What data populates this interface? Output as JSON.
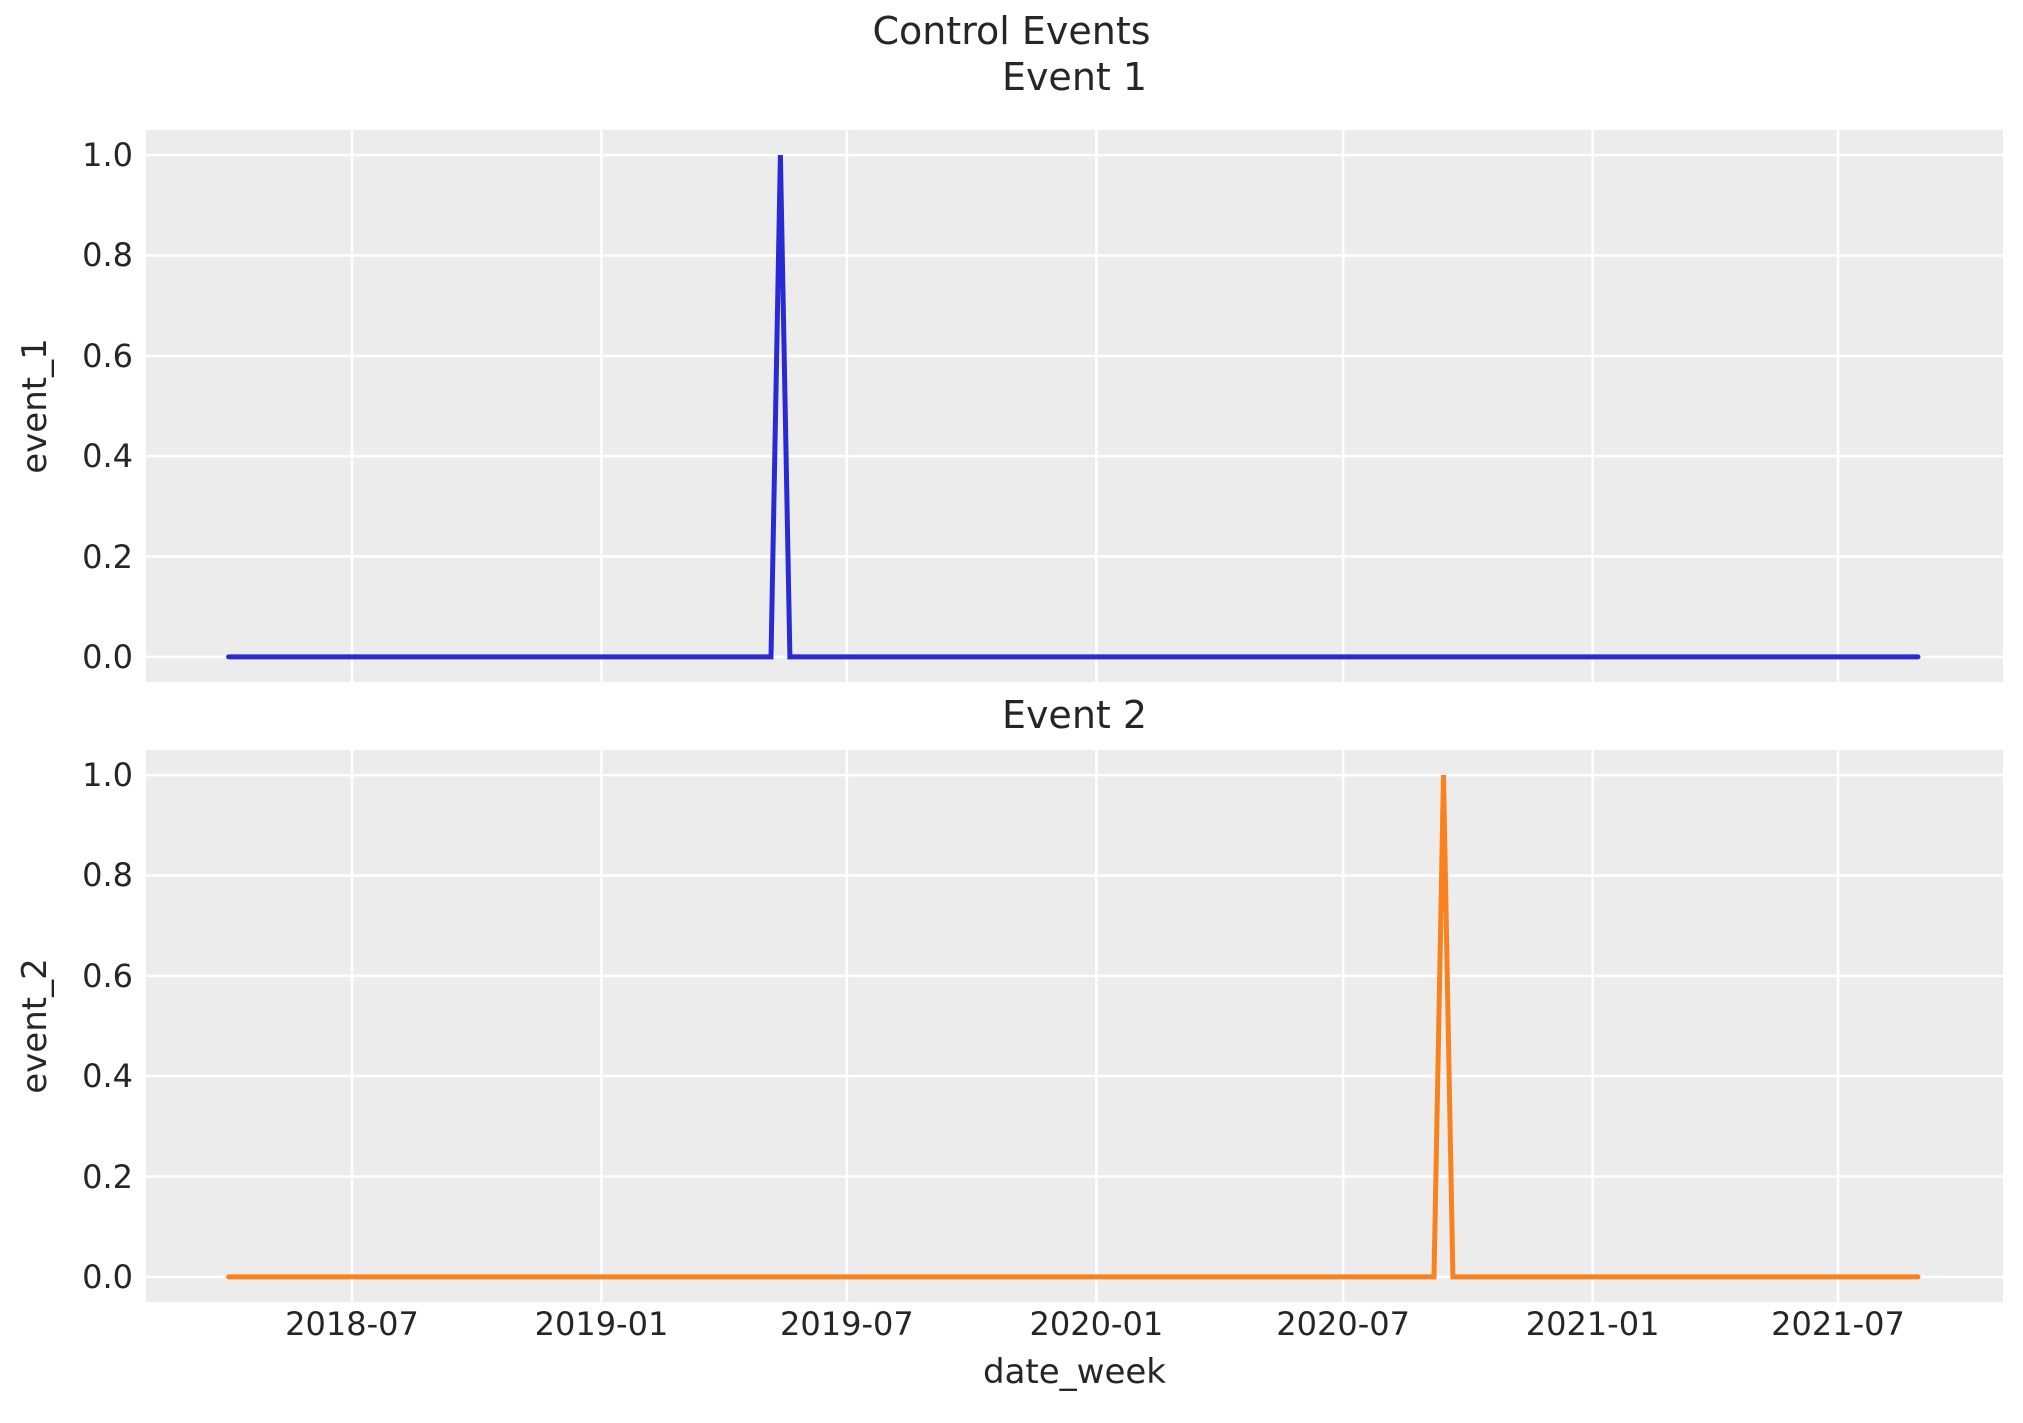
{
  "figure": {
    "title": "Control Events"
  },
  "colors": {
    "figure_background": "#ffffff",
    "plot_background": "#ececec",
    "gridline": "#ffffff",
    "text": "#262626",
    "event_1_line": "#2a2ad4",
    "event_2_line": "#f9821e"
  },
  "chart_data": [
    {
      "type": "line",
      "title": "Event 1",
      "ylabel": "event_1",
      "xlabel": "",
      "grid": true,
      "legend": "none",
      "show_xtick_labels": false,
      "ylim": [
        -0.05,
        1.05
      ],
      "x_range": [
        "2018-04-01",
        "2021-08-29"
      ],
      "xticks": [
        "2018-07",
        "2019-01",
        "2019-07",
        "2020-01",
        "2020-07",
        "2021-01",
        "2021-07"
      ],
      "ytick_labels": [
        "0.0",
        "0.2",
        "0.4",
        "0.6",
        "0.8",
        "1.0"
      ],
      "series": [
        {
          "name": "event_1",
          "color": "#2a2ad4",
          "baseline_value": 0.0,
          "spike": {
            "date": "2019-05-13",
            "value": 1.0
          },
          "points": [
            [
              "2018-04-01",
              0.0
            ],
            [
              "2019-05-06",
              0.0
            ],
            [
              "2019-05-13",
              1.0
            ],
            [
              "2019-05-20",
              0.0
            ],
            [
              "2021-08-29",
              0.0
            ]
          ]
        }
      ]
    },
    {
      "type": "line",
      "title": "Event 2",
      "ylabel": "event_2",
      "xlabel": "date_week",
      "grid": true,
      "legend": "none",
      "show_xtick_labels": true,
      "ylim": [
        -0.05,
        1.05
      ],
      "x_range": [
        "2018-04-01",
        "2021-08-29"
      ],
      "xticks": [
        "2018-07",
        "2019-01",
        "2019-07",
        "2020-01",
        "2020-07",
        "2021-01",
        "2021-07"
      ],
      "ytick_labels": [
        "0.0",
        "0.2",
        "0.4",
        "0.6",
        "0.8",
        "1.0"
      ],
      "series": [
        {
          "name": "event_2",
          "color": "#f9821e",
          "baseline_value": 0.0,
          "spike": {
            "date": "2020-09-13",
            "value": 1.0
          },
          "points": [
            [
              "2018-04-01",
              0.0
            ],
            [
              "2020-09-06",
              0.0
            ],
            [
              "2020-09-13",
              1.0
            ],
            [
              "2020-09-20",
              0.0
            ],
            [
              "2021-08-29",
              0.0
            ]
          ]
        }
      ]
    }
  ]
}
